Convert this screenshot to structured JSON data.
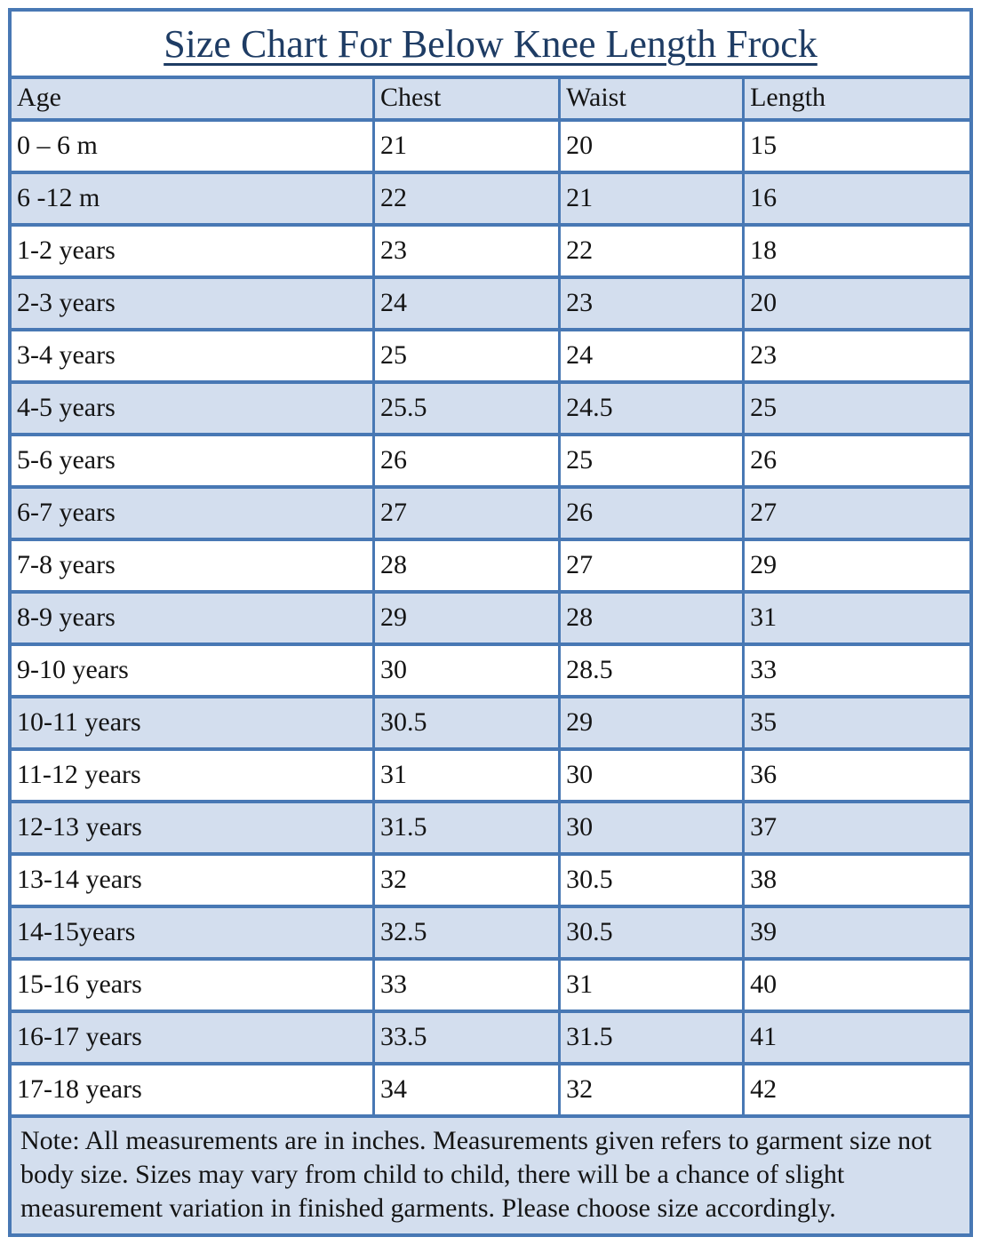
{
  "title": "Size Chart For Below Knee Length Frock",
  "table": {
    "columns": [
      "Age",
      "Chest",
      "Waist",
      "Length"
    ],
    "row_keys": [
      "age",
      "chest",
      "waist",
      "length"
    ],
    "rows": [
      {
        "age": "0 – 6 m",
        "chest": "21",
        "waist": "20",
        "length": "15"
      },
      {
        "age": "6 -12 m",
        "chest": "22",
        "waist": "21",
        "length": "16"
      },
      {
        "age": "1-2 years",
        "chest": "23",
        "waist": "22",
        "length": "18"
      },
      {
        "age": "2-3 years",
        "chest": "24",
        "waist": "23",
        "length": "20"
      },
      {
        "age": "3-4 years",
        "chest": "25",
        "waist": "24",
        "length": "23"
      },
      {
        "age": "4-5 years",
        "chest": "25.5",
        "waist": "24.5",
        "length": "25"
      },
      {
        "age": "5-6 years",
        "chest": "26",
        "waist": "25",
        "length": "26"
      },
      {
        "age": "6-7 years",
        "chest": "27",
        "waist": "26",
        "length": "27"
      },
      {
        "age": "7-8 years",
        "chest": "28",
        "waist": "27",
        "length": "29"
      },
      {
        "age": "8-9 years",
        "chest": "29",
        "waist": "28",
        "length": "31"
      },
      {
        "age": "9-10 years",
        "chest": "30",
        "waist": "28.5",
        "length": "33"
      },
      {
        "age": "10-11 years",
        "chest": "30.5",
        "waist": "29",
        "length": "35"
      },
      {
        "age": "11-12 years",
        "chest": "31",
        "waist": "30",
        "length": "36"
      },
      {
        "age": "12-13 years",
        "chest": "31.5",
        "waist": "30",
        "length": "37"
      },
      {
        "age": "13-14 years",
        "chest": "32",
        "waist": "30.5",
        "length": "38"
      },
      {
        "age": "14-15years",
        "chest": "32.5",
        "waist": "30.5",
        "length": "39"
      },
      {
        "age": "15-16 years",
        "chest": "33",
        "waist": "31",
        "length": "40"
      },
      {
        "age": "16-17 years",
        "chest": "33.5",
        "waist": "31.5",
        "length": "41"
      },
      {
        "age": "17-18 years",
        "chest": "34",
        "waist": "32",
        "length": "42"
      }
    ]
  },
  "note": "Note: All measurements are in inches. Measurements given refers to garment size not body size. Sizes may vary from child to child, there will be a chance of slight measurement variation in finished garments. Please choose size accordingly.",
  "colors": {
    "border_blue": "#4878b4",
    "border_dark": "#3c66a0",
    "band_fill": "#d3deee",
    "title_text": "#1e3c64",
    "cell_text": "#141414"
  }
}
